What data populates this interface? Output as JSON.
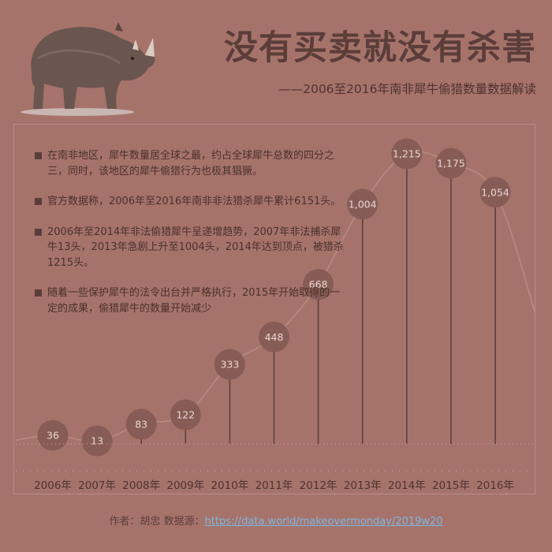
{
  "title": "没有买卖就没有杀害",
  "subtitle": "——2006至2016年南非犀牛偷猎数量数据解读",
  "notes": [
    "在南非地区，犀牛数量居全球之最，约占全球犀牛总数的四分之三，同时，该地区的犀牛偷猎行为也极其猖獗。",
    "官方数据称，2006年至2016年南非非法猎杀犀牛累计6151头。",
    "2006年至2014年非法偷猎犀牛呈递增趋势，2007年非法捕杀犀牛13头，2013年急剧上升至1004头，2014年达到顶点，被猎杀1215头。",
    "随着一些保护犀牛的法令出台并严格执行，2015年开始取得的一定的成果，偷猎犀牛的数量开始减少"
  ],
  "credit": {
    "author": "作者：胡忠  数据源：",
    "link": "https://data.world/makeovermonday/2019w20"
  },
  "colors": {
    "background": "#a6736b",
    "bubble": "#875c57",
    "bubble_text": "#ead6d2",
    "stem": "#5b403c",
    "curve": "#b98a83",
    "axis_text": "#4e3330"
  },
  "chart_data": {
    "type": "lollipop",
    "title": "",
    "xlabel": "",
    "ylabel": "",
    "categories": [
      "2006年",
      "2007年",
      "2008年",
      "2009年",
      "2010年",
      "2011年",
      "2012年",
      "2013年",
      "2014年",
      "2015年",
      "2016年"
    ],
    "values": [
      36,
      13,
      83,
      122,
      333,
      448,
      668,
      1004,
      1215,
      1175,
      1054
    ],
    "labels": [
      "36",
      "13",
      "83",
      "122",
      "333",
      "448",
      "668",
      "1,004",
      "1,215",
      "1,175",
      "1,054"
    ],
    "trend": "smooth curve through the values",
    "grid": false,
    "legend": "none"
  }
}
